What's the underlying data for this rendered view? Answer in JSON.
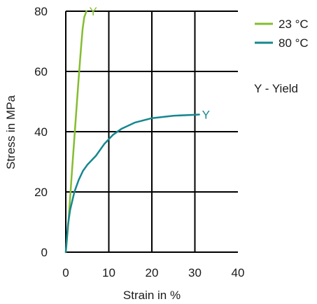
{
  "chart_data": {
    "type": "line",
    "xlabel": "Strain in %",
    "ylabel": "Stress in MPa",
    "xlim": [
      0,
      40
    ],
    "ylim": [
      0,
      80
    ],
    "xticks": [
      0,
      10,
      20,
      30,
      40
    ],
    "yticks": [
      0,
      20,
      40,
      60,
      80
    ],
    "grid": true,
    "legend_position": "top-right",
    "series": [
      {
        "name": "23 °C",
        "color": "#84bd2f",
        "points": [
          [
            0,
            0
          ],
          [
            0.5,
            8
          ],
          [
            1,
            18
          ],
          [
            1.5,
            28
          ],
          [
            2,
            38
          ],
          [
            2.5,
            48
          ],
          [
            3,
            58
          ],
          [
            3.5,
            67
          ],
          [
            3.9,
            74
          ],
          [
            4.3,
            78
          ],
          [
            4.8,
            80
          ]
        ],
        "yield_label": "Y",
        "yield_point": [
          4.8,
          80
        ]
      },
      {
        "name": "80 °C",
        "color": "#16878f",
        "points": [
          [
            0,
            0
          ],
          [
            0.5,
            9
          ],
          [
            1,
            14
          ],
          [
            2,
            20
          ],
          [
            3,
            24
          ],
          [
            4,
            27
          ],
          [
            5,
            29
          ],
          [
            7,
            32
          ],
          [
            9,
            36
          ],
          [
            11,
            39
          ],
          [
            13,
            41
          ],
          [
            16,
            43
          ],
          [
            20,
            44.5
          ],
          [
            25,
            45.3
          ],
          [
            30,
            45.6
          ],
          [
            31,
            45.7
          ]
        ],
        "yield_label": "Y",
        "yield_point": [
          31,
          45.7
        ]
      }
    ],
    "annotation": "Y - Yield"
  }
}
